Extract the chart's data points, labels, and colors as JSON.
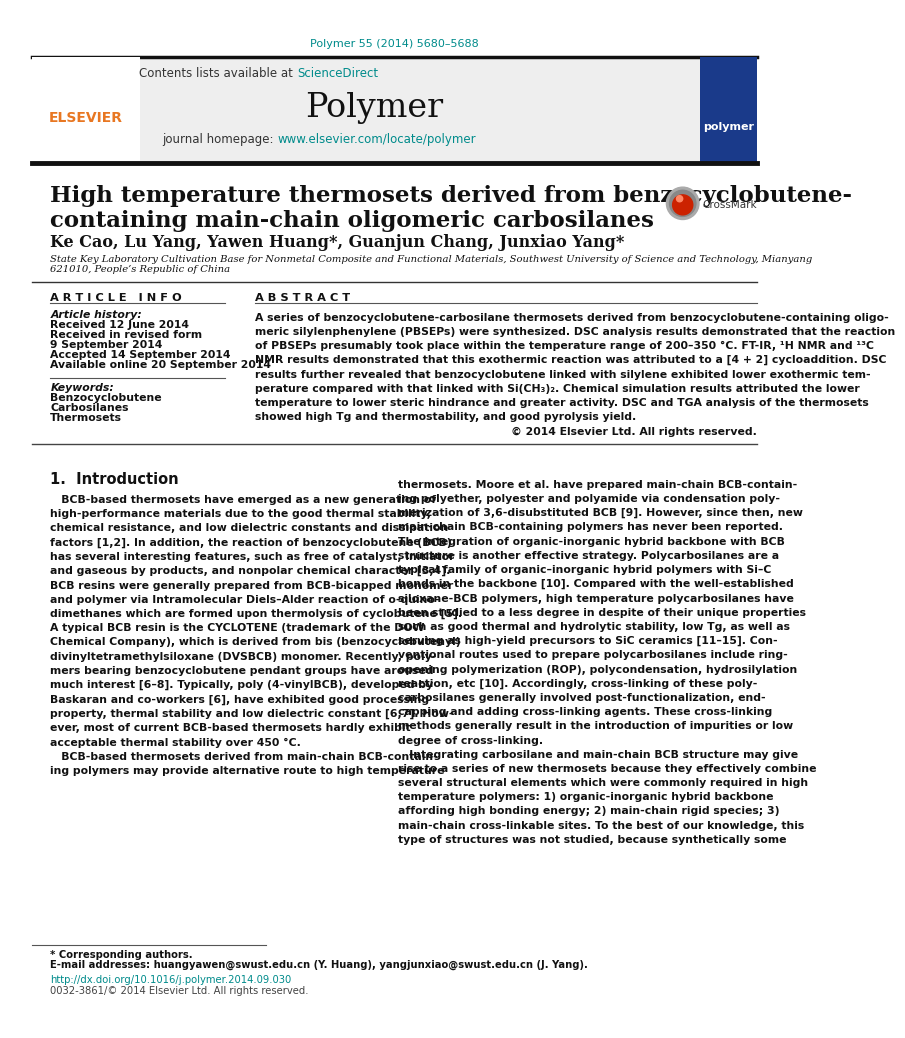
{
  "doi_text": "Polymer 55 (2014) 5680–5688",
  "doi_color": "#008B8B",
  "journal_name": "Polymer",
  "contents_text": "Contents lists available at ",
  "sciencedirect_text": "ScienceDirect",
  "sciencedirect_color": "#008B8B",
  "homepage_text": "journal homepage: ",
  "homepage_url": "www.elsevier.com/locate/polymer",
  "homepage_color": "#008B8B",
  "title_line1": "High temperature thermosets derived from benzocyclobutene-",
  "title_line2": "containing main-chain oligomeric carbosilanes",
  "authors": "Ke Cao, Lu Yang, Yawen Huang*, Guanjun Chang, Junxiao Yang*",
  "affiliation_line1": "State Key Laboratory Cultivation Base for Nonmetal Composite and Functional Materials, Southwest University of Science and Technology, Mianyang",
  "affiliation_line2": "621010, People’s Republic of China",
  "article_info_title": "A R T I C L E   I N F O",
  "abstract_title": "A B S T R A C T",
  "article_history_label": "Article history:",
  "received_1": "Received 12 June 2014",
  "received_2": "Received in revised form",
  "received_2b": "9 September 2014",
  "accepted": "Accepted 14 September 2014",
  "available": "Available online 20 September 2014",
  "keywords_label": "Keywords:",
  "keyword1": "Benzocyclobutene",
  "keyword2": "Carbosilanes",
  "keyword3": "Thermosets",
  "abstract_text": "A series of benzocyclobutene-carbosilane thermosets derived from benzocyclobutene-containing oligo-\nmeric silylenphenylene (PBSEPs) were synthesized. DSC analysis results demonstrated that the reaction\nof PBSEPs presumably took place within the temperature range of 200–350 °C. FT-IR, ¹H NMR and ¹³C\nNMR results demonstrated that this exothermic reaction was attributed to a [4 + 2] cycloaddition. DSC\nresults further revealed that benzocyclobutene linked with silylene exhibited lower exothermic tem-\nperature compared with that linked with Si(CH₃)₂. Chemical simulation results attributed the lower\ntemperature to lower steric hindrance and greater activity. DSC and TGA analysis of the thermosets\nshowed high Tg and thermostability, and good pyrolysis yield.",
  "copyright_text": "© 2014 Elsevier Ltd. All rights reserved.",
  "section1_title": "1.  Introduction",
  "intro_left": "   BCB-based thermosets have emerged as a new generation of\nhigh-performance materials due to the good thermal stability,\nchemical resistance, and low dielectric constants and dissipation\nfactors [1,2]. In addition, the reaction of benzocyclobutene (BCB)\nhas several interesting features, such as free of catalyst, initiator\nand gaseous by products, and nonpolar chemical character [3,4].\nBCB resins were generally prepared from BCB-bicapped monomer\nand polymer via Intramolecular Diels–Alder reaction of o-quino-\ndimethanes which are formed upon thermolysis of cyclobutene [5].\nA typical BCB resin is the CYCLOTENE (trademark of the DOW\nChemical Company), which is derived from bis (benzocyclobutenyl)\ndivinyltetramethylsiloxane (DVSBCB) monomer. Recently, poly-\nmers bearing benzocyclobutene pendant groups have aroused\nmuch interest [6–8]. Typically, poly (4-vinylBCB), developed by\nBaskaran and co-workers [6], have exhibited good processing\nproperty, thermal stability and low dielectric constant [6,7]. How-\never, most of current BCB-based thermosets hardly exhibit\nacceptable thermal stability over 450 °C.\n   BCB-based thermosets derived from main-chain BCB-contain-\ning polymers may provide alternative route to high temperature",
  "intro_right": "thermosets. Moore et al. have prepared main-chain BCB-contain-\ning polyether, polyester and polyamide via condensation poly-\nmerization of 3,6-disubstituted BCB [9]. However, since then, new\nmain-chain BCB-containing polymers has never been reported.\nThe integration of organic-inorganic hybrid backbone with BCB\nstructure is another effective strategy. Polycarbosilanes are a\ntypical family of organic–inorganic hybrid polymers with Si–C\nbonds in the backbone [10]. Compared with the well-established\nsiloxane-BCB polymers, high temperature polycarbosilanes have\nbeen studied to a less degree in despite of their unique properties\nsuch as good thermal and hydrolytic stability, low Tg, as well as\nserving as high-yield precursors to SiC ceramics [11–15]. Con-\nventional routes used to prepare polycarbosilanes include ring-\nopening polymerization (ROP), polycondensation, hydrosilylation\nreaction, etc [10]. Accordingly, cross-linking of these poly-\ncarbosilanes generally involved post-functionalization, end-\ncapping and adding cross-linking agents. These cross-linking\nmethods generally result in the introduction of impurities or low\ndegree of cross-linking.\n   Integrating carbosilane and main-chain BCB structure may give\nrise to a series of new thermosets because they effectively combine\nseveral structural elements which were commonly required in high\ntemperature polymers: 1) organic-inorganic hybrid backbone\naffording high bonding energy; 2) main-chain rigid species; 3)\nmain-chain cross-linkable sites. To the best of our knowledge, this\ntype of structures was not studied, because synthetically some",
  "footnote_star": "* Corresponding authors.",
  "footnote_email": "E-mail addresses: huangyawen@swust.edu.cn (Y. Huang), yangjunxiao@swust.edu.cn (J. Yang).",
  "footer_doi": "http://dx.doi.org/10.1016/j.polymer.2014.09.030",
  "footer_issn": "0032-3861/© 2014 Elsevier Ltd. All rights reserved.",
  "bg_color": "#ffffff",
  "header_bg": "#eeeeee",
  "text_color": "#000000",
  "teal_color": "#008B8B",
  "orange_color": "#E87722"
}
